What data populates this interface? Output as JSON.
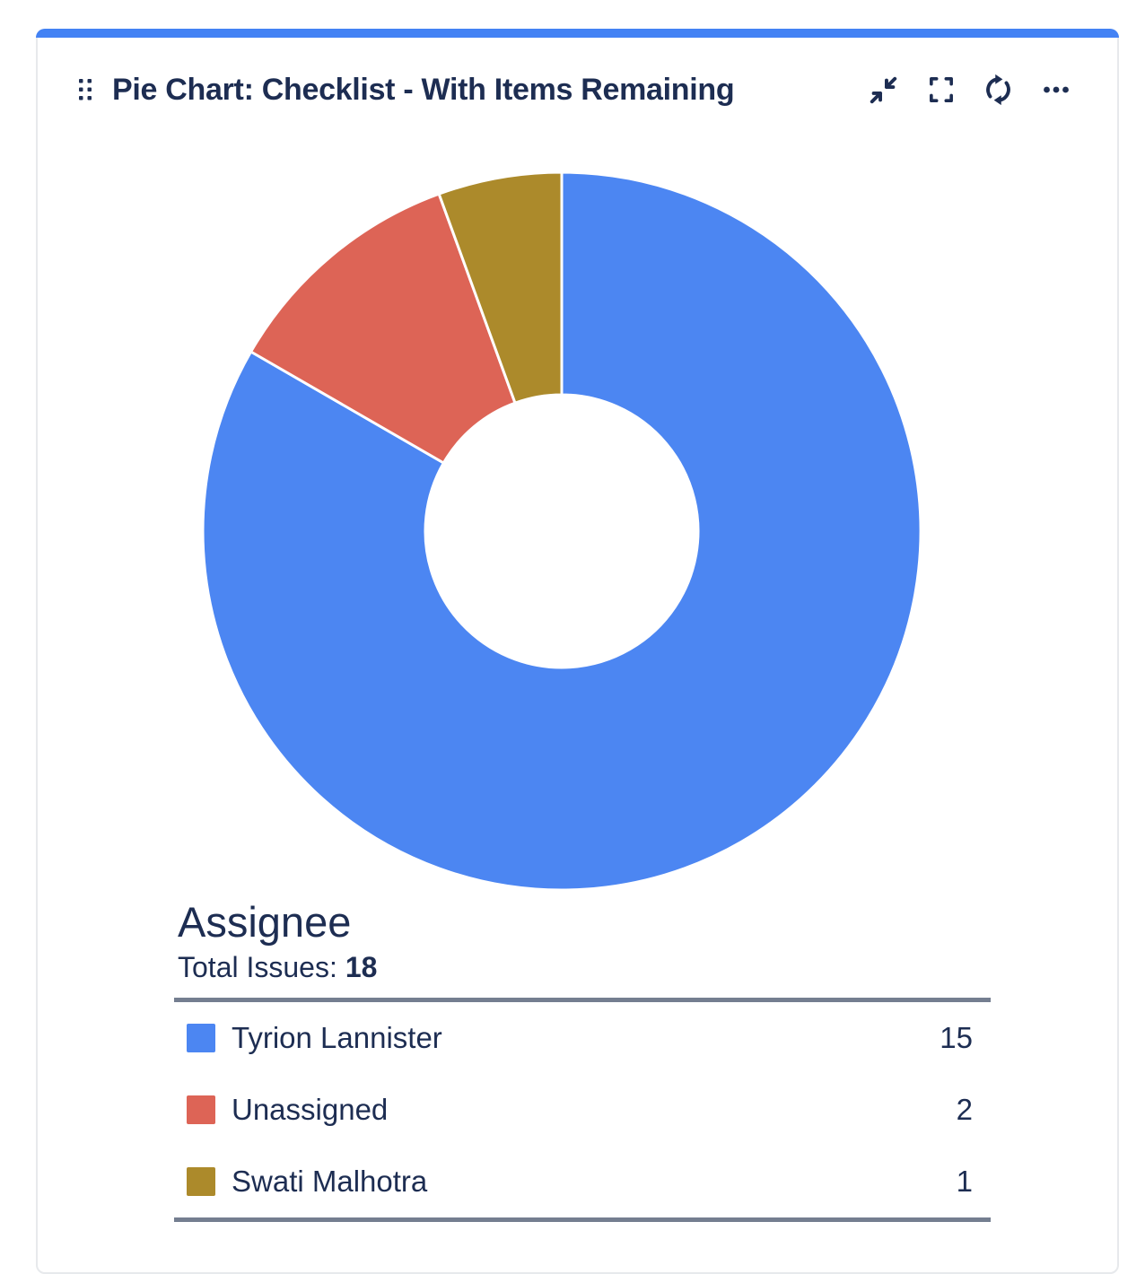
{
  "gadget": {
    "title": "Pie Chart: Checklist - With Items Remaining",
    "accent_color": "#4382F4",
    "toolbar_icons": [
      "collapse",
      "fullscreen",
      "refresh",
      "more"
    ]
  },
  "chart_data": {
    "type": "pie",
    "subtype": "donut",
    "title": "Assignee",
    "total_label": "Total Issues:",
    "total_issues": 18,
    "start_angle_deg": 0,
    "direction": "clockwise",
    "legend_position": "bottom",
    "series": [
      {
        "label": "Tyrion Lannister",
        "value": 15,
        "color": "#4C86F2"
      },
      {
        "label": "Unassigned",
        "value": 2,
        "color": "#DD6456"
      },
      {
        "label": "Swati Malhotra",
        "value": 1,
        "color": "#AC8A2B"
      }
    ]
  },
  "colors": {
    "text_navy": "#1D2D52",
    "legend_rule": "#747E90",
    "card_border": "#E7E9EC",
    "donut_separator": "#FFFFFF"
  }
}
